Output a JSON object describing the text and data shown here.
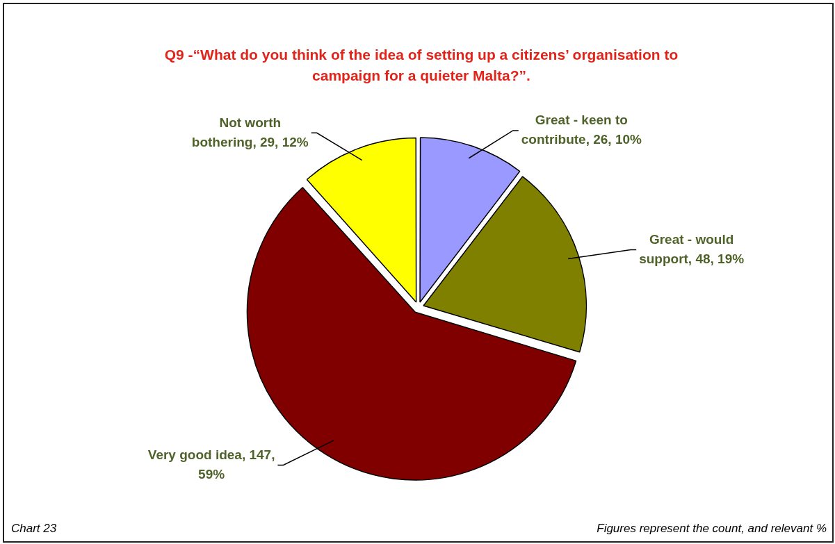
{
  "chart_data": {
    "type": "pie",
    "title": "Q9 -“What do you think of the idea of setting up a citizens’ organisation to campaign for a quieter Malta?”.",
    "categories": [
      "Great - keen to contribute",
      "Great - would support",
      "Very good idea",
      "Not worth bothering"
    ],
    "values": [
      26,
      48,
      147,
      29
    ],
    "colors": [
      "#9999ff",
      "#808000",
      "#800000",
      "#ffff00"
    ],
    "value_labels": [
      "26, 10%",
      "48, 19%",
      "147, 59%",
      "29, 12%"
    ],
    "annotations": [
      "Chart 23",
      "Figures represent the count, and relevant %"
    ]
  }
}
